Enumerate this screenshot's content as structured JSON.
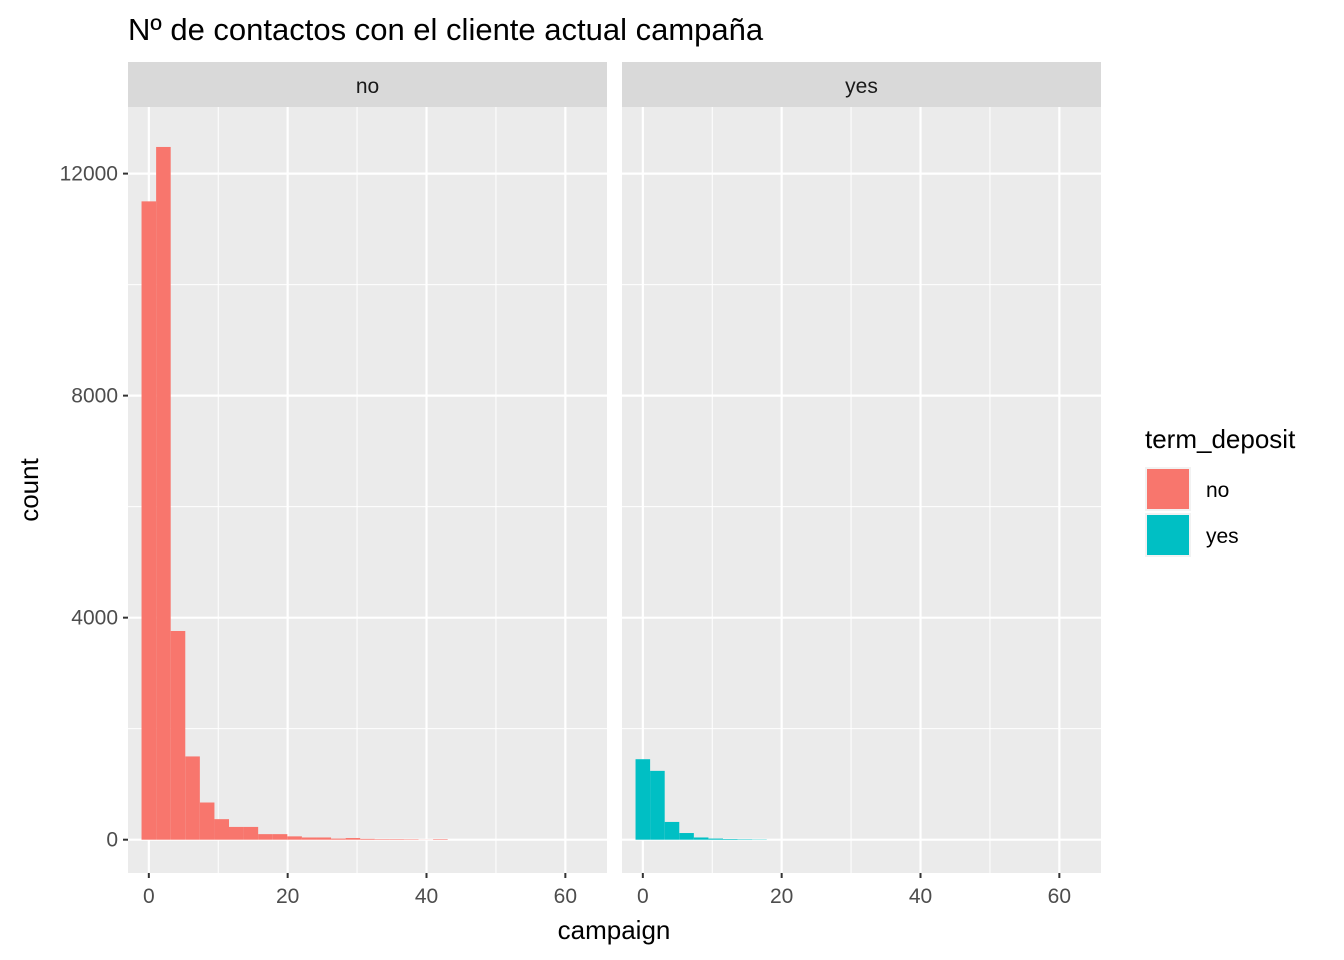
{
  "chart_data": {
    "type": "bar",
    "subtype": "faceted-histogram",
    "title": "Nº de contactos con el cliente actual campaña",
    "xlabel": "campaign",
    "ylabel": "count",
    "xlim": [
      -3,
      66
    ],
    "ylim": [
      -600,
      13200
    ],
    "x_ticks": [
      0,
      20,
      40,
      60
    ],
    "y_ticks": [
      0,
      4000,
      8000,
      12000
    ],
    "bin_width": 2.1,
    "grid": true,
    "legend": {
      "title": "term_deposit",
      "placement": "right",
      "entries": [
        {
          "label": "no",
          "color": "#F8766D"
        },
        {
          "label": "yes",
          "color": "#00BFC4"
        }
      ]
    },
    "panels": [
      {
        "strip_label": "no",
        "fill": "#F8766D",
        "bins": [
          {
            "x": 0.0,
            "count": 11500
          },
          {
            "x": 2.1,
            "count": 12480
          },
          {
            "x": 4.2,
            "count": 3760
          },
          {
            "x": 6.3,
            "count": 1500
          },
          {
            "x": 8.4,
            "count": 670
          },
          {
            "x": 10.5,
            "count": 370
          },
          {
            "x": 12.6,
            "count": 230
          },
          {
            "x": 14.7,
            "count": 230
          },
          {
            "x": 16.8,
            "count": 100
          },
          {
            "x": 18.9,
            "count": 100
          },
          {
            "x": 21.0,
            "count": 60
          },
          {
            "x": 23.1,
            "count": 40
          },
          {
            "x": 25.2,
            "count": 40
          },
          {
            "x": 27.3,
            "count": 20
          },
          {
            "x": 29.4,
            "count": 30
          },
          {
            "x": 31.5,
            "count": 15
          },
          {
            "x": 33.6,
            "count": 10
          },
          {
            "x": 35.7,
            "count": 10
          },
          {
            "x": 37.8,
            "count": 8
          },
          {
            "x": 39.9,
            "count": 2
          },
          {
            "x": 42.0,
            "count": 10
          }
        ]
      },
      {
        "strip_label": "yes",
        "fill": "#00BFC4",
        "bins": [
          {
            "x": 0.0,
            "count": 1450
          },
          {
            "x": 2.1,
            "count": 1240
          },
          {
            "x": 4.2,
            "count": 320
          },
          {
            "x": 6.3,
            "count": 120
          },
          {
            "x": 8.4,
            "count": 40
          },
          {
            "x": 10.5,
            "count": 20
          },
          {
            "x": 12.6,
            "count": 12
          },
          {
            "x": 14.7,
            "count": 8
          },
          {
            "x": 16.8,
            "count": 5
          }
        ]
      }
    ]
  }
}
